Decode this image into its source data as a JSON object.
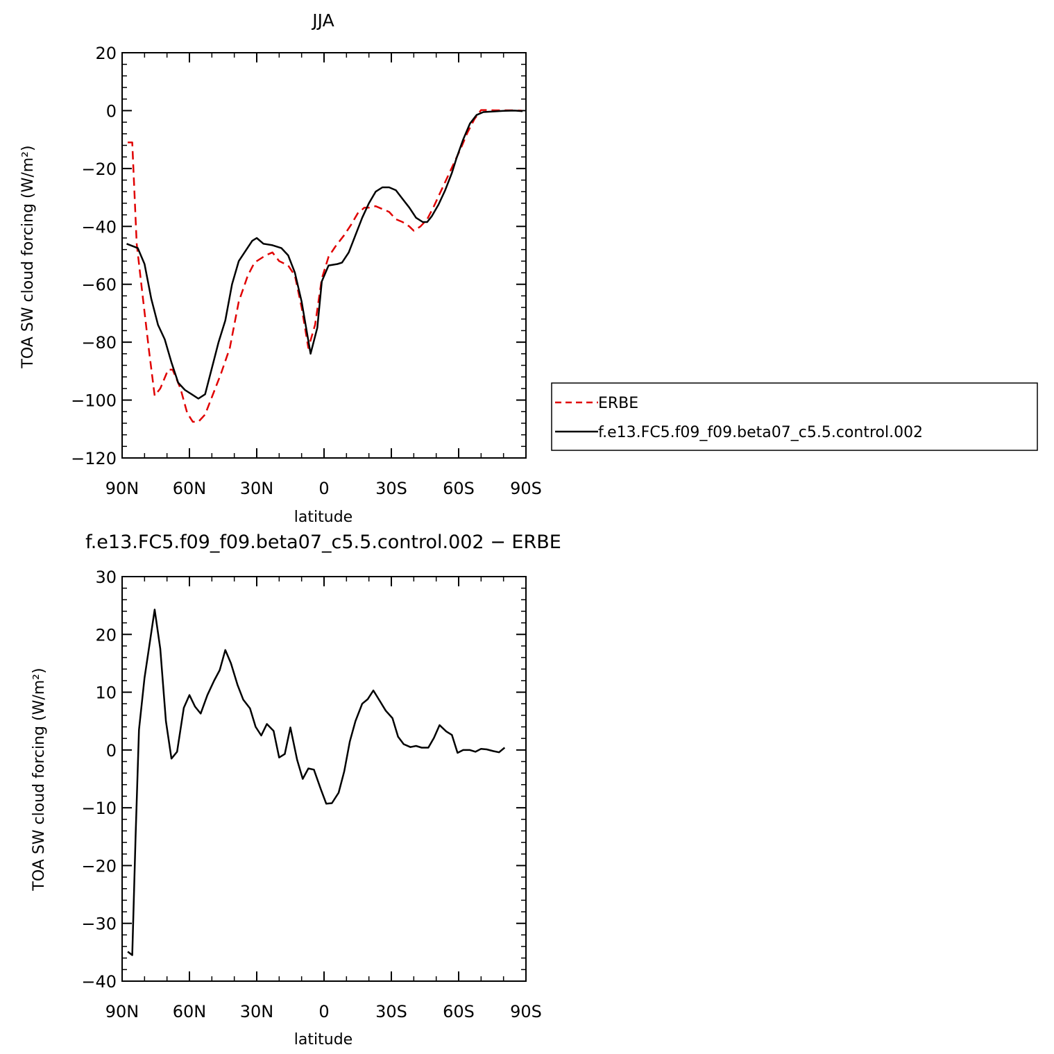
{
  "chart_data": [
    {
      "type": "line",
      "title": "JJA",
      "xlabel": "latitude",
      "ylabel": "TOA SW cloud forcing (W/m²)",
      "xlim": [
        90,
        -90
      ],
      "ylim": [
        -120,
        20
      ],
      "x_ticks": [
        {
          "value": 90,
          "label": "90N"
        },
        {
          "value": 60,
          "label": "60N"
        },
        {
          "value": 30,
          "label": "30N"
        },
        {
          "value": 0,
          "label": "0"
        },
        {
          "value": -30,
          "label": "30S"
        },
        {
          "value": -60,
          "label": "60S"
        },
        {
          "value": -90,
          "label": "90S"
        }
      ],
      "y_ticks": [
        20,
        0,
        -20,
        -40,
        -60,
        -80,
        -100,
        -120
      ],
      "legend_position": "right",
      "series": [
        {
          "name": "ERBE",
          "color": "#e00000",
          "dash": "dashed",
          "points": [
            [
              87.5,
              -11
            ],
            [
              85.5,
              -11
            ],
            [
              83.5,
              -46
            ],
            [
              81,
              -63
            ],
            [
              78,
              -83
            ],
            [
              75.5,
              -98.5
            ],
            [
              73,
              -96
            ],
            [
              69.5,
              -89.5
            ],
            [
              67.5,
              -89.5
            ],
            [
              64,
              -96
            ],
            [
              61,
              -104.5
            ],
            [
              58.5,
              -107.5
            ],
            [
              56,
              -107.5
            ],
            [
              53,
              -105
            ],
            [
              50,
              -99
            ],
            [
              46,
              -91
            ],
            [
              42,
              -82
            ],
            [
              38,
              -66
            ],
            [
              34,
              -57
            ],
            [
              31,
              -52.5
            ],
            [
              26,
              -50
            ],
            [
              23,
              -49
            ],
            [
              20,
              -52
            ],
            [
              16,
              -53.5
            ],
            [
              13,
              -57
            ],
            [
              10,
              -68
            ],
            [
              7,
              -82
            ],
            [
              4,
              -74
            ],
            [
              1,
              -58
            ],
            [
              -2,
              -50.5
            ],
            [
              -5,
              -47
            ],
            [
              -9,
              -43
            ],
            [
              -12,
              -39.5
            ],
            [
              -15,
              -35.5
            ],
            [
              -18,
              -33.5
            ],
            [
              -20.5,
              -33.5
            ],
            [
              -23,
              -33
            ],
            [
              -26,
              -34
            ],
            [
              -29,
              -35
            ],
            [
              -32,
              -37.5
            ],
            [
              -35,
              -38.5
            ],
            [
              -38,
              -40
            ],
            [
              -40,
              -41.5
            ],
            [
              -43,
              -40
            ],
            [
              -46,
              -37.5
            ],
            [
              -49,
              -33
            ],
            [
              -52,
              -28
            ],
            [
              -55,
              -23
            ],
            [
              -58,
              -18
            ],
            [
              -61,
              -13
            ],
            [
              -64,
              -7.5
            ],
            [
              -67,
              -3
            ],
            [
              -70,
              0.2
            ],
            [
              -73,
              0.2
            ],
            [
              -76,
              0.1
            ],
            [
              -79,
              0.1
            ],
            [
              -82,
              0.1
            ],
            [
              -85,
              0.1
            ],
            [
              -88,
              0
            ]
          ]
        },
        {
          "name": "f.e13.FC5.f09_f09.beta07_c5.5.control.002",
          "color": "#000000",
          "dash": "solid",
          "points": [
            [
              88,
              -46
            ],
            [
              83,
              -47.5
            ],
            [
              80,
              -53
            ],
            [
              77,
              -65
            ],
            [
              74,
              -74
            ],
            [
              71,
              -79
            ],
            [
              68,
              -87
            ],
            [
              65,
              -94
            ],
            [
              62,
              -96.5
            ],
            [
              59,
              -98
            ],
            [
              56,
              -99.5
            ],
            [
              53,
              -98
            ],
            [
              50,
              -89
            ],
            [
              47,
              -80
            ],
            [
              44,
              -72.5
            ],
            [
              41,
              -60
            ],
            [
              38,
              -52
            ],
            [
              35,
              -48.5
            ],
            [
              32,
              -45
            ],
            [
              30,
              -44
            ],
            [
              27,
              -46
            ],
            [
              23,
              -46.5
            ],
            [
              19,
              -47.5
            ],
            [
              16,
              -50
            ],
            [
              13,
              -56
            ],
            [
              10,
              -66
            ],
            [
              6,
              -84
            ],
            [
              3,
              -75
            ],
            [
              1,
              -59
            ],
            [
              -2,
              -53.5
            ],
            [
              -6,
              -53
            ],
            [
              -8,
              -52.5
            ],
            [
              -11,
              -49
            ],
            [
              -14,
              -43
            ],
            [
              -17,
              -37
            ],
            [
              -20,
              -32
            ],
            [
              -23,
              -28
            ],
            [
              -26,
              -26.5
            ],
            [
              -29,
              -26.5
            ],
            [
              -32,
              -27.5
            ],
            [
              -35,
              -30.5
            ],
            [
              -38,
              -33.5
            ],
            [
              -41,
              -37
            ],
            [
              -44,
              -38.5
            ],
            [
              -46,
              -38.5
            ],
            [
              -48,
              -36.5
            ],
            [
              -51,
              -32.5
            ],
            [
              -54,
              -27.5
            ],
            [
              -57,
              -21.5
            ],
            [
              -59,
              -16.5
            ],
            [
              -62,
              -10
            ],
            [
              -65,
              -4.5
            ],
            [
              -68,
              -1.5
            ],
            [
              -71,
              -0.5
            ],
            [
              -75,
              -0.3
            ],
            [
              -80,
              -0.1
            ],
            [
              -85,
              0
            ],
            [
              -88.5,
              -0.2
            ]
          ]
        }
      ]
    },
    {
      "type": "line",
      "title": "f.e13.FC5.f09_f09.beta07_c5.5.control.002 − ERBE",
      "xlabel": "latitude",
      "ylabel": "TOA SW cloud forcing (W/m²)",
      "xlim": [
        90,
        -90
      ],
      "ylim": [
        -40,
        30
      ],
      "x_ticks": [
        {
          "value": 90,
          "label": "90N"
        },
        {
          "value": 60,
          "label": "60N"
        },
        {
          "value": 30,
          "label": "30N"
        },
        {
          "value": 0,
          "label": "0"
        },
        {
          "value": -30,
          "label": "30S"
        },
        {
          "value": -60,
          "label": "60S"
        },
        {
          "value": -90,
          "label": "90S"
        }
      ],
      "y_ticks": [
        30,
        20,
        10,
        0,
        -10,
        -20,
        -30,
        -40
      ],
      "series": [
        {
          "color": "#000000",
          "dash": "solid",
          "points": [
            [
              87.5,
              -34.9
            ],
            [
              85.5,
              -35.5
            ],
            [
              84,
              -15
            ],
            [
              82.5,
              3.5
            ],
            [
              80,
              12.5
            ],
            [
              77.5,
              19
            ],
            [
              75.5,
              24.3
            ],
            [
              73,
              17.5
            ],
            [
              70.5,
              5
            ],
            [
              68,
              -1.5
            ],
            [
              65.5,
              -0.3
            ],
            [
              62.5,
              7.3
            ],
            [
              60,
              9.5
            ],
            [
              57.5,
              7.5
            ],
            [
              55,
              6.3
            ],
            [
              52,
              9.5
            ],
            [
              49,
              12
            ],
            [
              46.5,
              13.8
            ],
            [
              44,
              17.3
            ],
            [
              41.5,
              15
            ],
            [
              38.5,
              11.2
            ],
            [
              36,
              8.7
            ],
            [
              33,
              7.2
            ],
            [
              30.5,
              4
            ],
            [
              28,
              2.5
            ],
            [
              25.5,
              4.5
            ],
            [
              22.5,
              3.3
            ],
            [
              20,
              -1.3
            ],
            [
              17.5,
              -0.7
            ],
            [
              15,
              3.9
            ],
            [
              12,
              -1.7
            ],
            [
              9.5,
              -5
            ],
            [
              7,
              -3.2
            ],
            [
              4.5,
              -3.4
            ],
            [
              1.5,
              -6.7
            ],
            [
              -1,
              -9.3
            ],
            [
              -3.5,
              -9.2
            ],
            [
              -6.5,
              -7.4
            ],
            [
              -9,
              -3.7
            ],
            [
              -11.5,
              1.5
            ],
            [
              -14,
              5
            ],
            [
              -17,
              8
            ],
            [
              -19.5,
              8.8
            ],
            [
              -22,
              10.3
            ],
            [
              -25,
              8.4
            ],
            [
              -27.5,
              6.8
            ],
            [
              -30.5,
              5.5
            ],
            [
              -33,
              2.3
            ],
            [
              -35.5,
              1
            ],
            [
              -38.5,
              0.5
            ],
            [
              -41,
              0.7
            ],
            [
              -43.5,
              0.4
            ],
            [
              -46.5,
              0.4
            ],
            [
              -49,
              2.1
            ],
            [
              -51.5,
              4.3
            ],
            [
              -54.5,
              3.2
            ],
            [
              -57,
              2.6
            ],
            [
              -59.5,
              -0.5
            ],
            [
              -62,
              0
            ],
            [
              -65,
              0
            ],
            [
              -67.5,
              -0.3
            ],
            [
              -70,
              0.2
            ],
            [
              -72.5,
              0.1
            ],
            [
              -75.5,
              -0.2
            ],
            [
              -78,
              -0.4
            ],
            [
              -80.5,
              0.4
            ]
          ]
        }
      ]
    }
  ]
}
